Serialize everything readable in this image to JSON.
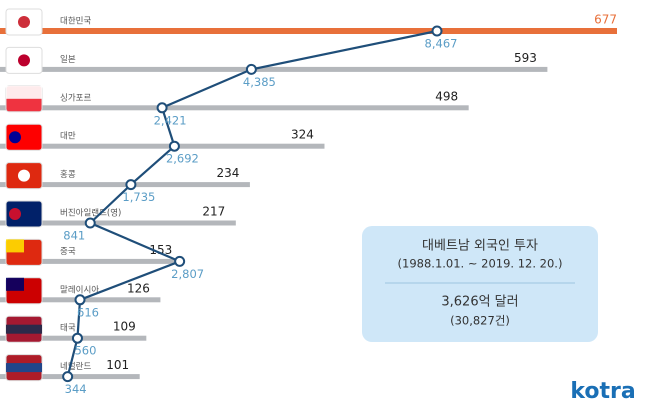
{
  "chart_data": {
    "type": "bar",
    "categories": [
      "대한민국",
      "일본",
      "싱가포르",
      "대만",
      "홍콩",
      "버진아일랜드(영)",
      "중국",
      "말레이시아",
      "태국",
      "네덜란드"
    ],
    "values": [
      677,
      593,
      498,
      324,
      234,
      217,
      153,
      126,
      109,
      101
    ],
    "color": "#b4b7bb",
    "highlight_color": "#e8703a",
    "line": {
      "values": [
        8467,
        4385,
        2421,
        2692,
        1735,
        841,
        2807,
        616,
        560,
        344
      ],
      "value_labels": [
        "8,467",
        "4,385",
        "2,421",
        "2,692",
        "1,735",
        "841",
        "2,807",
        "616",
        "560",
        "344"
      ],
      "color": "#1f4e79",
      "label_color": "#5b9dc6"
    },
    "annotations": [
      "대베트남 외국인 투자",
      "(1988.1.01. ~ 2019. 12. 20.)",
      "3,626억 달러",
      "(30,827건)"
    ],
    "logo": "kotra"
  }
}
